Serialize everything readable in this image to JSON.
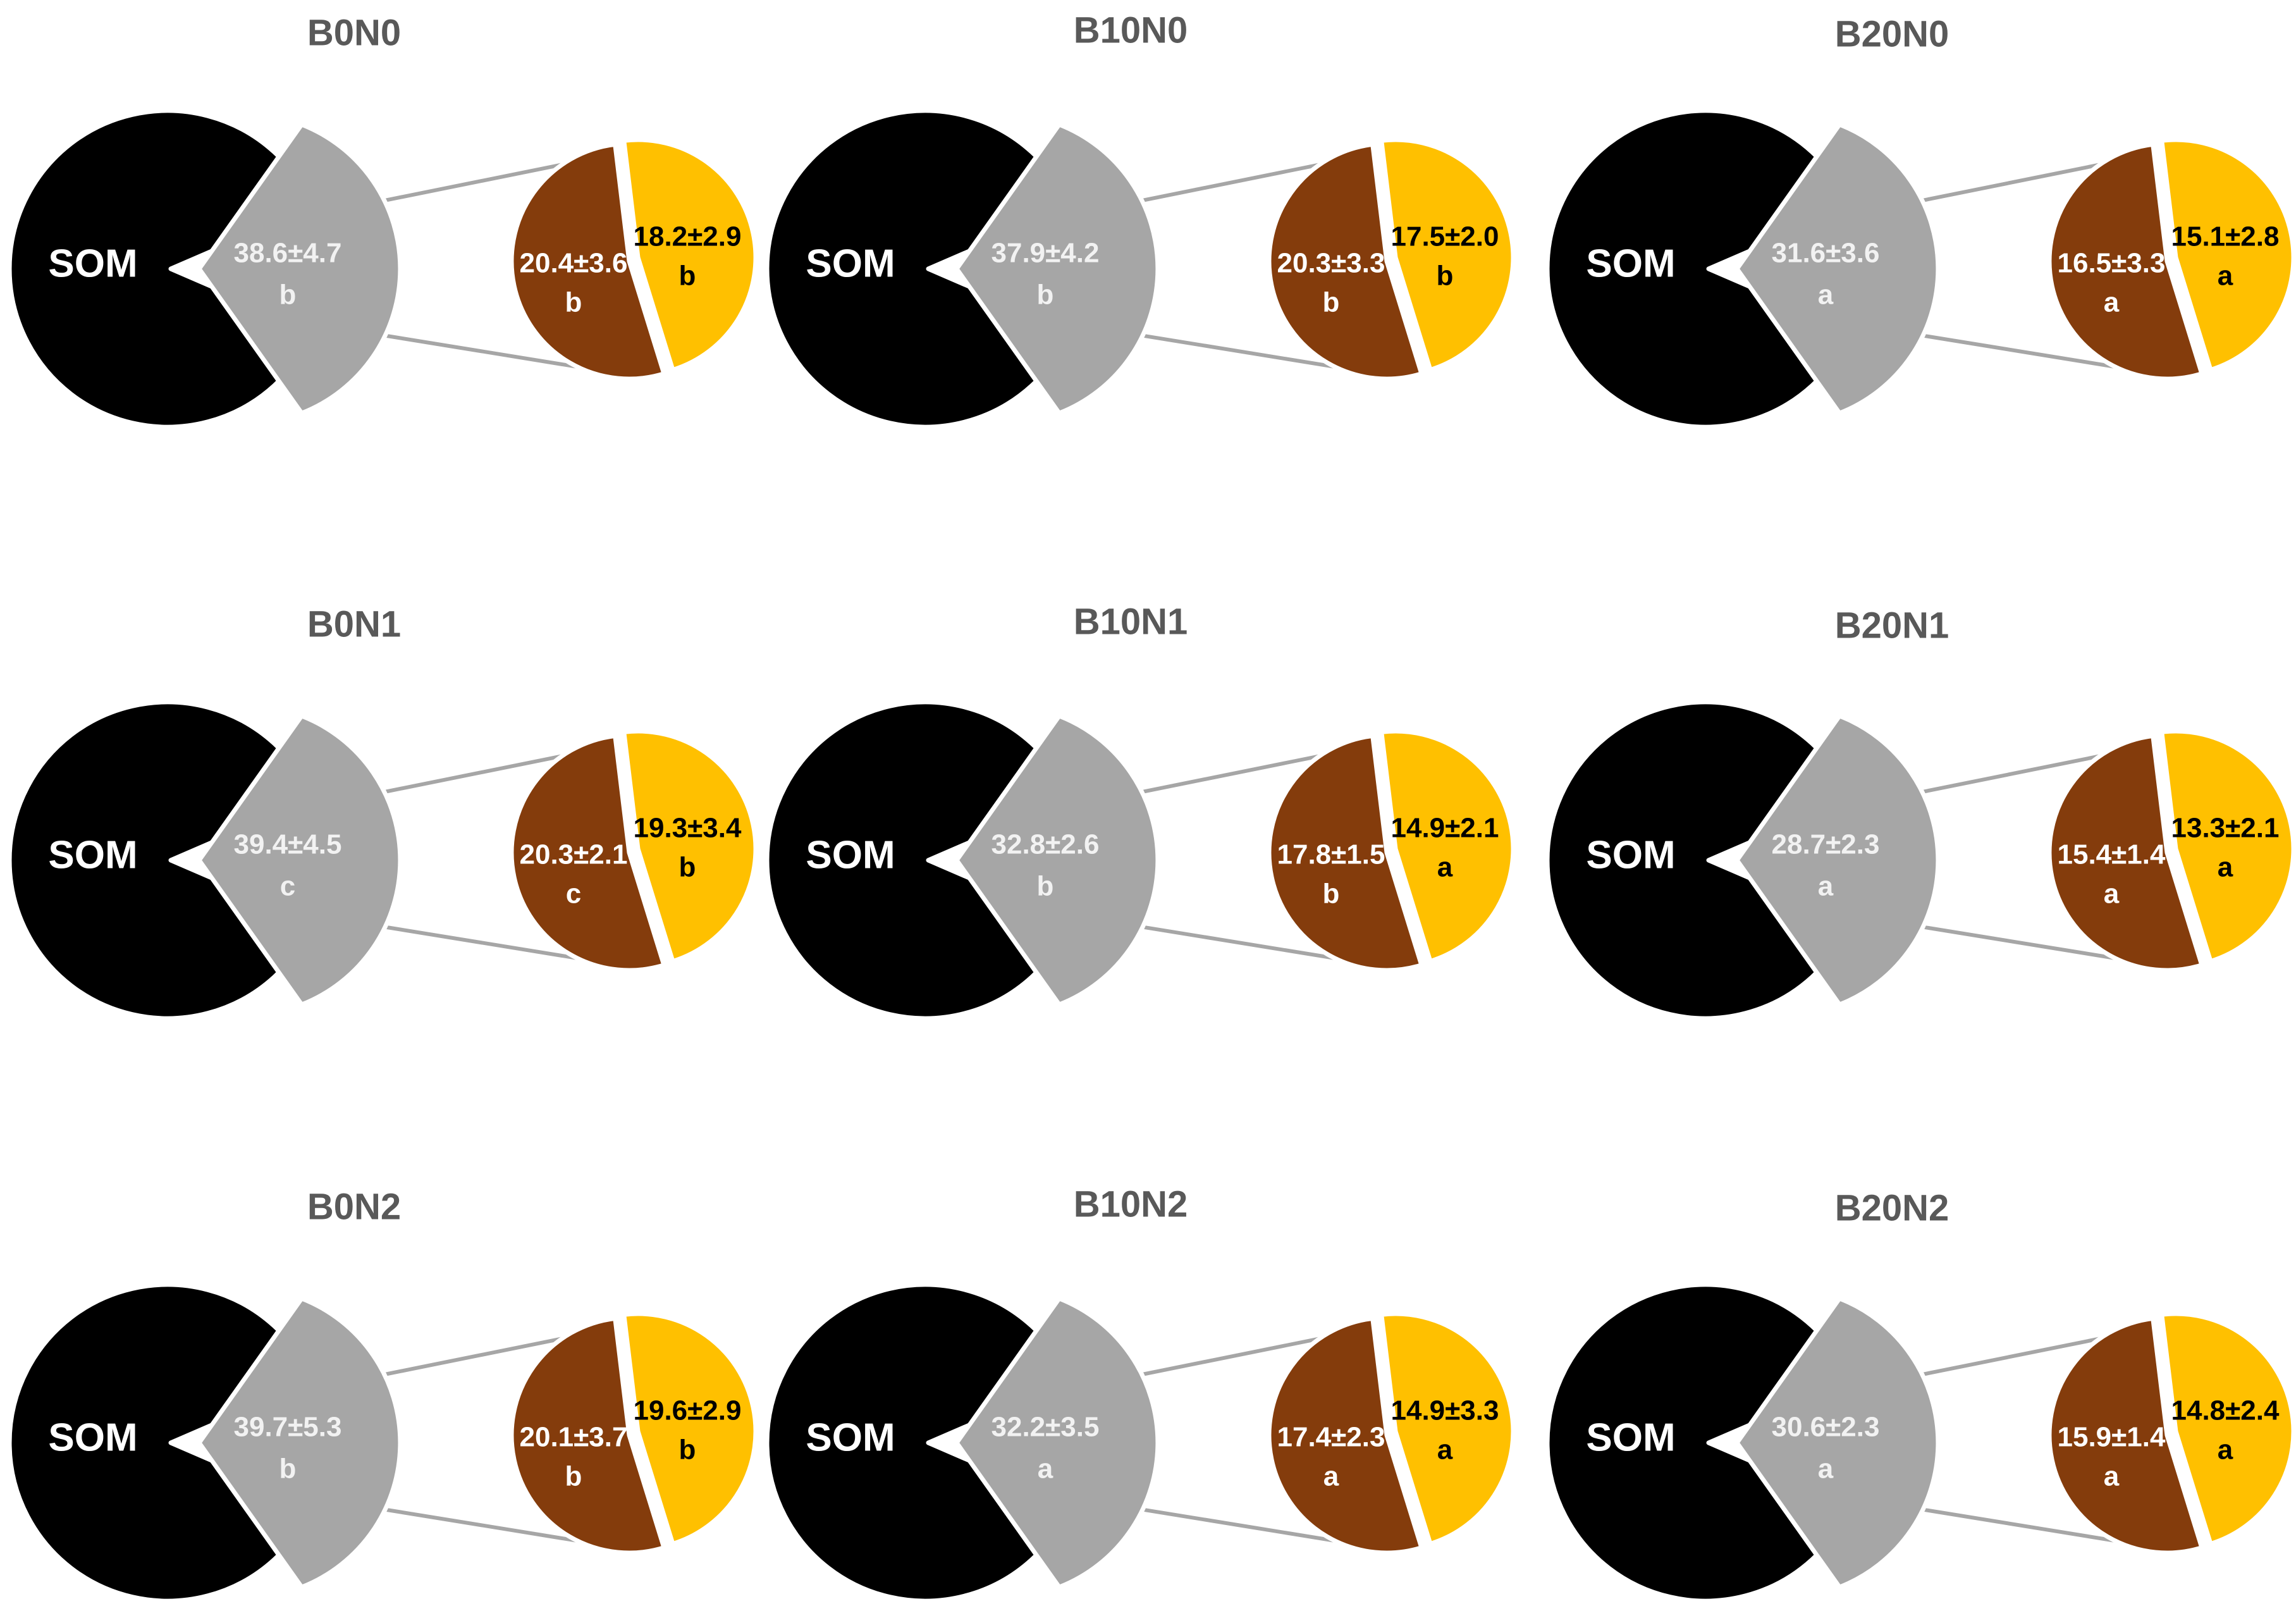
{
  "chart_data": {
    "type": "pie",
    "colors": {
      "som": "#000000",
      "gray": "#a6a6a6",
      "brown": "#843c0c",
      "yellow": "#ffc000",
      "connector": "#a6a6a6",
      "title": "#595959"
    },
    "panels": [
      {
        "title": "B0N0",
        "som_label": "SOM",
        "gray": {
          "value": "38.6±4.7",
          "letter": "b"
        },
        "brown": {
          "value": "20.4±3.6",
          "letter": "b"
        },
        "yellow": {
          "value": "18.2±2.9",
          "letter": "b"
        }
      },
      {
        "title": "B10N0",
        "som_label": "SOM",
        "gray": {
          "value": "37.9±4.2",
          "letter": "b"
        },
        "brown": {
          "value": "20.3±3.3",
          "letter": "b"
        },
        "yellow": {
          "value": "17.5±2.0",
          "letter": "b"
        }
      },
      {
        "title": "B20N0",
        "som_label": "SOM",
        "gray": {
          "value": "31.6±3.6",
          "letter": "a"
        },
        "brown": {
          "value": "16.5±3.3",
          "letter": "a"
        },
        "yellow": {
          "value": "15.1±2.8",
          "letter": "a"
        }
      },
      {
        "title": "B0N1",
        "som_label": "SOM",
        "gray": {
          "value": "39.4±4.5",
          "letter": "c"
        },
        "brown": {
          "value": "20.3±2.1",
          "letter": "c"
        },
        "yellow": {
          "value": "19.3±3.4",
          "letter": "b"
        }
      },
      {
        "title": "B10N1",
        "som_label": "SOM",
        "gray": {
          "value": "32.8±2.6",
          "letter": "b"
        },
        "brown": {
          "value": "17.8±1.5",
          "letter": "b"
        },
        "yellow": {
          "value": "14.9±2.1",
          "letter": "a"
        }
      },
      {
        "title": "B20N1",
        "som_label": "SOM",
        "gray": {
          "value": "28.7±2.3",
          "letter": "a"
        },
        "brown": {
          "value": "15.4±1.4",
          "letter": "a"
        },
        "yellow": {
          "value": "13.3±2.1",
          "letter": "a"
        }
      },
      {
        "title": "B0N2",
        "som_label": "SOM",
        "gray": {
          "value": "39.7±5.3",
          "letter": "b"
        },
        "brown": {
          "value": "20.1±3.7",
          "letter": "b"
        },
        "yellow": {
          "value": "19.6±2.9",
          "letter": "b"
        }
      },
      {
        "title": "B10N2",
        "som_label": "SOM",
        "gray": {
          "value": "32.2±3.5",
          "letter": "a"
        },
        "brown": {
          "value": "17.4±2.3",
          "letter": "a"
        },
        "yellow": {
          "value": "14.9±3.3",
          "letter": "a"
        }
      },
      {
        "title": "B20N2",
        "som_label": "SOM",
        "gray": {
          "value": "30.6±2.3",
          "letter": "a"
        },
        "brown": {
          "value": "15.9±1.4",
          "letter": "a"
        },
        "yellow": {
          "value": "14.8±2.4",
          "letter": "a"
        }
      }
    ]
  }
}
